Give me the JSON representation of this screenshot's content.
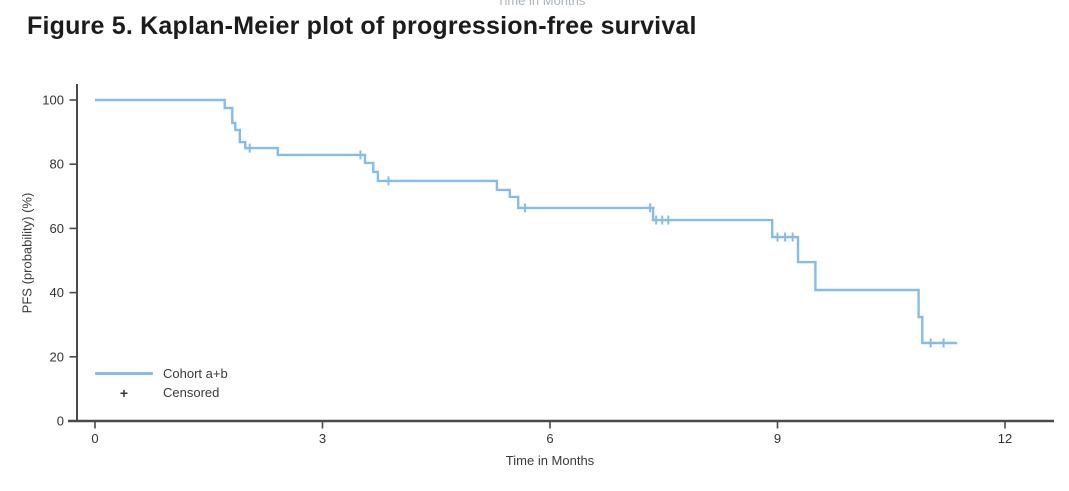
{
  "artifacts": {
    "top_edge_fragment": "Time in Months"
  },
  "chart_data": {
    "type": "line",
    "subtype": "kaplan_meier_step",
    "title": "Figure 5. Kaplan-Meier plot of progression-free survival",
    "xlabel": "Time in Months",
    "ylabel": "PFS (probability) (%)",
    "xlim": [
      0,
      12
    ],
    "ylim": [
      0,
      100
    ],
    "xticks": [
      0,
      3,
      6,
      9,
      12
    ],
    "yticks": [
      0,
      20,
      40,
      60,
      80,
      100
    ],
    "grid": false,
    "legend": {
      "position": "lower-left",
      "plus_glyph": "+",
      "entries": [
        {
          "label": "Cohort a+b",
          "marker": "line",
          "color": "#85bce8"
        },
        {
          "label": "Censored",
          "marker": "plus",
          "color": "#3a3a3a"
        }
      ]
    },
    "series": [
      {
        "name": "Cohort a+b",
        "color": "#85bce8",
        "points": [
          [
            0,
            100
          ],
          [
            1.71,
            97.5
          ],
          [
            1.81,
            92.8
          ],
          [
            1.85,
            90.7
          ],
          [
            1.91,
            86.9
          ],
          [
            1.98,
            85.0
          ],
          [
            2.41,
            82.9
          ],
          [
            3.56,
            80.4
          ],
          [
            3.67,
            77.6
          ],
          [
            3.73,
            74.8
          ],
          [
            5.3,
            72.0
          ],
          [
            5.47,
            69.8
          ],
          [
            5.58,
            66.4
          ],
          [
            7.36,
            62.6
          ],
          [
            8.93,
            57.3
          ],
          [
            9.27,
            49.5
          ],
          [
            9.5,
            40.8
          ],
          [
            10.86,
            32.4
          ],
          [
            10.91,
            24.3
          ]
        ],
        "censored": [
          [
            2.04,
            85.0
          ],
          [
            3.5,
            82.9
          ],
          [
            3.87,
            74.8
          ],
          [
            5.67,
            66.4
          ],
          [
            7.32,
            66.4
          ],
          [
            7.4,
            62.6
          ],
          [
            7.48,
            62.6
          ],
          [
            7.56,
            62.6
          ],
          [
            9.0,
            57.3
          ],
          [
            9.1,
            57.3
          ],
          [
            9.2,
            57.3
          ],
          [
            11.02,
            24.3
          ],
          [
            11.19,
            24.3
          ]
        ],
        "end_time": 11.37
      }
    ],
    "colors": {
      "curve": "#85bce8",
      "axis": "#4a4a4a",
      "tick_text": "#333333"
    }
  }
}
